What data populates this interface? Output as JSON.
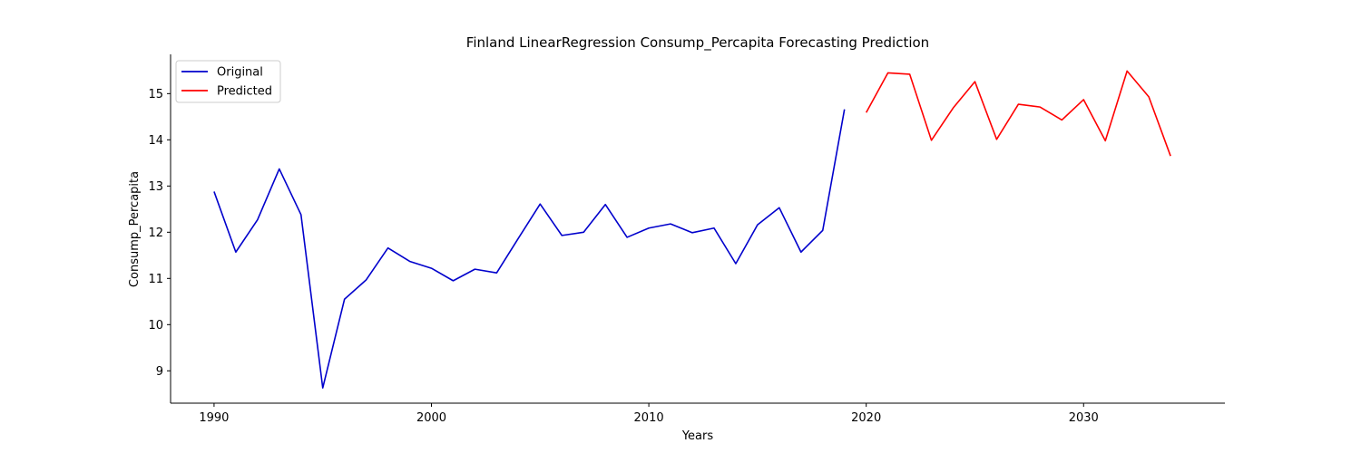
{
  "chart_data": {
    "type": "line",
    "title": "Finland LinearRegression Consump_Percapita Forecasting Prediction",
    "xlabel": "Years",
    "ylabel": "Consump_Percapita",
    "xlim": [
      1988,
      2036.5
    ],
    "ylim": [
      8.3,
      15.85
    ],
    "xticks": [
      1990,
      2000,
      2010,
      2020,
      2030
    ],
    "yticks": [
      9,
      10,
      11,
      12,
      13,
      14,
      15
    ],
    "legend_position": "top-left",
    "grid": false,
    "series": [
      {
        "name": "Original",
        "color": "#0000cc",
        "x": [
          1990,
          1991,
          1992,
          1993,
          1994,
          1995,
          1996,
          1997,
          1998,
          1999,
          2000,
          2001,
          2002,
          2003,
          2004,
          2005,
          2006,
          2007,
          2008,
          2009,
          2010,
          2011,
          2012,
          2013,
          2014,
          2015,
          2016,
          2017,
          2018,
          2019
        ],
        "y": [
          12.88,
          11.57,
          12.27,
          13.37,
          12.38,
          8.63,
          10.55,
          10.97,
          11.66,
          11.37,
          11.22,
          10.95,
          11.2,
          11.12,
          11.87,
          12.61,
          11.93,
          12.0,
          12.6,
          11.89,
          12.09,
          12.18,
          11.99,
          12.09,
          11.32,
          12.16,
          12.53,
          11.57,
          12.04,
          14.66
        ]
      },
      {
        "name": "Predicted",
        "color": "#ff0000",
        "x": [
          2020,
          2021,
          2022,
          2023,
          2024,
          2025,
          2026,
          2027,
          2028,
          2029,
          2030,
          2031,
          2032,
          2033,
          2034
        ],
        "y": [
          14.59,
          15.45,
          15.42,
          13.99,
          14.69,
          15.26,
          14.01,
          14.77,
          14.71,
          14.43,
          14.87,
          13.98,
          15.49,
          14.93,
          13.65
        ]
      }
    ]
  }
}
